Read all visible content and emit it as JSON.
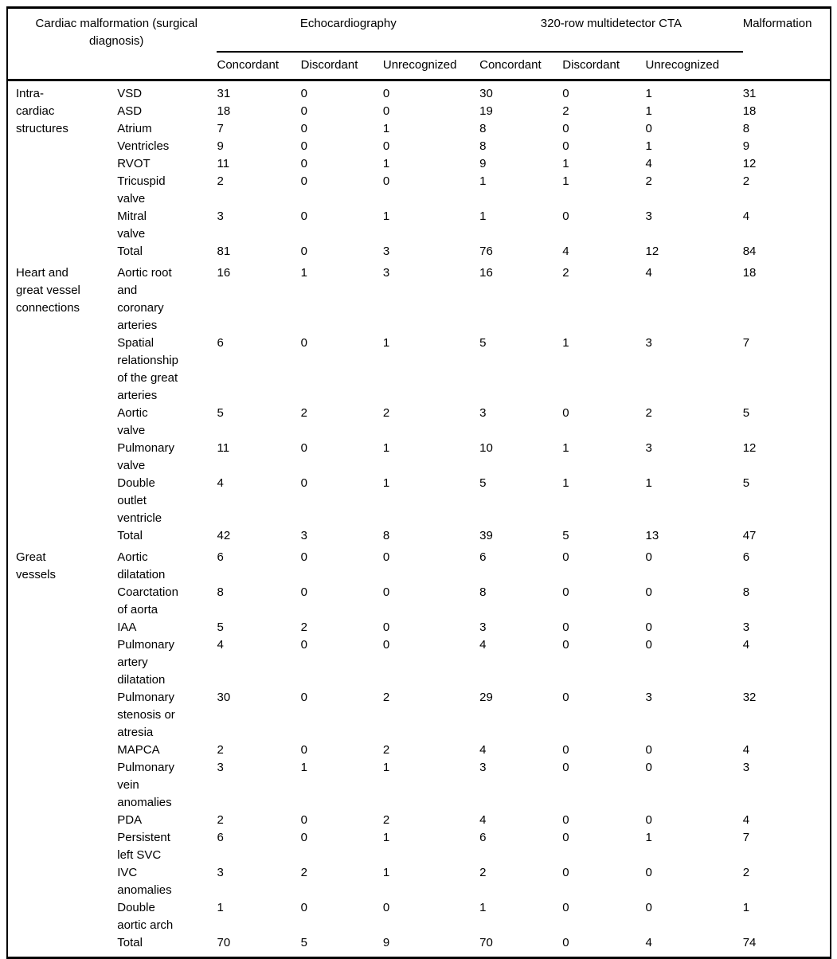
{
  "table": {
    "header": {
      "diagnosis_label_lines": [
        "Cardiac malformation (surgical",
        "diagnosis)"
      ],
      "echo_group_label": "Echocardiography",
      "cta_group_label": "320-row multidetector CTA",
      "malformation_label": "Malformation",
      "subheaders": [
        "Concordant",
        "Discordant",
        "Unrecognized",
        "Concordant",
        "Discordant",
        "Unrecognized"
      ]
    },
    "sections": [
      {
        "category_lines": [
          "Intra-",
          "cardiac",
          "structures"
        ],
        "rows": [
          {
            "label_lines": [
              "VSD"
            ],
            "values": [
              31,
              0,
              0,
              30,
              0,
              1,
              31
            ]
          },
          {
            "label_lines": [
              "ASD"
            ],
            "values": [
              18,
              0,
              0,
              19,
              2,
              1,
              18
            ]
          },
          {
            "label_lines": [
              "Atrium"
            ],
            "values": [
              7,
              0,
              1,
              8,
              0,
              0,
              8
            ]
          },
          {
            "label_lines": [
              "Ventricles"
            ],
            "values": [
              9,
              0,
              0,
              8,
              0,
              1,
              9
            ]
          },
          {
            "label_lines": [
              "RVOT"
            ],
            "values": [
              11,
              0,
              1,
              9,
              1,
              4,
              12
            ]
          },
          {
            "label_lines": [
              "Tricuspid",
              "valve"
            ],
            "values": [
              2,
              0,
              0,
              1,
              1,
              2,
              2
            ]
          },
          {
            "label_lines": [
              "Mitral",
              "valve"
            ],
            "values": [
              3,
              0,
              1,
              1,
              0,
              3,
              4
            ]
          },
          {
            "label_lines": [
              "Total"
            ],
            "values": [
              81,
              0,
              3,
              76,
              4,
              12,
              84
            ]
          }
        ]
      },
      {
        "category_lines": [
          "Heart and",
          "great vessel",
          "connections"
        ],
        "rows": [
          {
            "label_lines": [
              "Aortic root",
              "and",
              "coronary",
              "arteries"
            ],
            "values": [
              16,
              1,
              3,
              16,
              2,
              4,
              18
            ]
          },
          {
            "label_lines": [
              "Spatial",
              "relationship",
              "of the great",
              "arteries"
            ],
            "values": [
              6,
              0,
              1,
              5,
              1,
              3,
              7
            ]
          },
          {
            "label_lines": [
              "Aortic",
              "valve"
            ],
            "values": [
              5,
              2,
              2,
              3,
              0,
              2,
              5
            ]
          },
          {
            "label_lines": [
              "Pulmonary",
              "valve"
            ],
            "values": [
              11,
              0,
              1,
              10,
              1,
              3,
              12
            ]
          },
          {
            "label_lines": [
              "Double",
              "outlet",
              "ventricle"
            ],
            "values": [
              4,
              0,
              1,
              5,
              1,
              1,
              5
            ]
          },
          {
            "label_lines": [
              "Total"
            ],
            "values": [
              42,
              3,
              8,
              39,
              5,
              13,
              47
            ]
          }
        ]
      },
      {
        "category_lines": [
          "Great",
          "vessels"
        ],
        "rows": [
          {
            "label_lines": [
              "Aortic",
              "dilatation"
            ],
            "values": [
              6,
              0,
              0,
              6,
              0,
              0,
              6
            ]
          },
          {
            "label_lines": [
              "Coarctation",
              "of aorta"
            ],
            "values": [
              8,
              0,
              0,
              8,
              0,
              0,
              8
            ]
          },
          {
            "label_lines": [
              "IAA"
            ],
            "values": [
              5,
              2,
              0,
              3,
              0,
              0,
              3
            ]
          },
          {
            "label_lines": [
              "Pulmonary",
              "artery",
              "dilatation"
            ],
            "values": [
              4,
              0,
              0,
              4,
              0,
              0,
              4
            ]
          },
          {
            "label_lines": [
              "Pulmonary",
              "stenosis or",
              "atresia"
            ],
            "values": [
              30,
              0,
              2,
              29,
              0,
              3,
              32
            ]
          },
          {
            "label_lines": [
              "MAPCA"
            ],
            "values": [
              2,
              0,
              2,
              4,
              0,
              0,
              4
            ]
          },
          {
            "label_lines": [
              "Pulmonary",
              "vein",
              "anomalies"
            ],
            "values": [
              3,
              1,
              1,
              3,
              0,
              0,
              3
            ]
          },
          {
            "label_lines": [
              "PDA"
            ],
            "values": [
              2,
              0,
              2,
              4,
              0,
              0,
              4
            ]
          },
          {
            "label_lines": [
              "Persistent",
              "left SVC"
            ],
            "values": [
              6,
              0,
              1,
              6,
              0,
              1,
              7
            ]
          },
          {
            "label_lines": [
              "IVC",
              "anomalies"
            ],
            "values": [
              3,
              2,
              1,
              2,
              0,
              0,
              2
            ]
          },
          {
            "label_lines": [
              "Double",
              "aortic arch"
            ],
            "values": [
              1,
              0,
              0,
              1,
              0,
              0,
              1
            ]
          },
          {
            "label_lines": [
              "Total"
            ],
            "values": [
              70,
              5,
              9,
              70,
              0,
              4,
              74
            ]
          }
        ]
      }
    ]
  }
}
